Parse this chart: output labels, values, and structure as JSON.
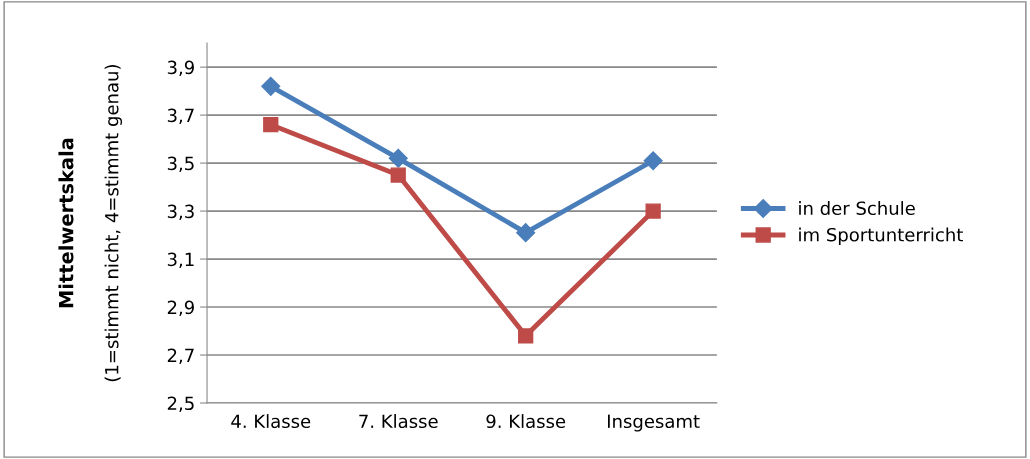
{
  "chart_data": {
    "type": "line",
    "ylabel": "Mittelwertskala",
    "annotations": [
      "(1=stimmt nicht, 4=stimmt genau)"
    ],
    "categories": [
      "4. Klasse",
      "7. Klasse",
      "9. Klasse",
      "Insgesamt"
    ],
    "series": [
      {
        "name": "in der Schule",
        "color": "#4a7ebb",
        "marker": "diamond",
        "values": [
          3.82,
          3.52,
          3.21,
          3.51
        ]
      },
      {
        "name": "im Sportunterricht",
        "color": "#be4b48",
        "marker": "square",
        "values": [
          3.66,
          3.45,
          2.78,
          3.3
        ]
      }
    ],
    "ylim": [
      2.5,
      4.0
    ],
    "yticks": [
      {
        "value": 2.5,
        "label": "2,5"
      },
      {
        "value": 2.7,
        "label": "2,7"
      },
      {
        "value": 2.9,
        "label": "2,9"
      },
      {
        "value": 3.1,
        "label": "3,1"
      },
      {
        "value": 3.3,
        "label": "3,3"
      },
      {
        "value": 3.5,
        "label": "3,5"
      },
      {
        "value": 3.7,
        "label": "3,7"
      },
      {
        "value": 3.9,
        "label": "3,9"
      }
    ],
    "grid": "y",
    "legend": "right",
    "line_style": "solid"
  }
}
